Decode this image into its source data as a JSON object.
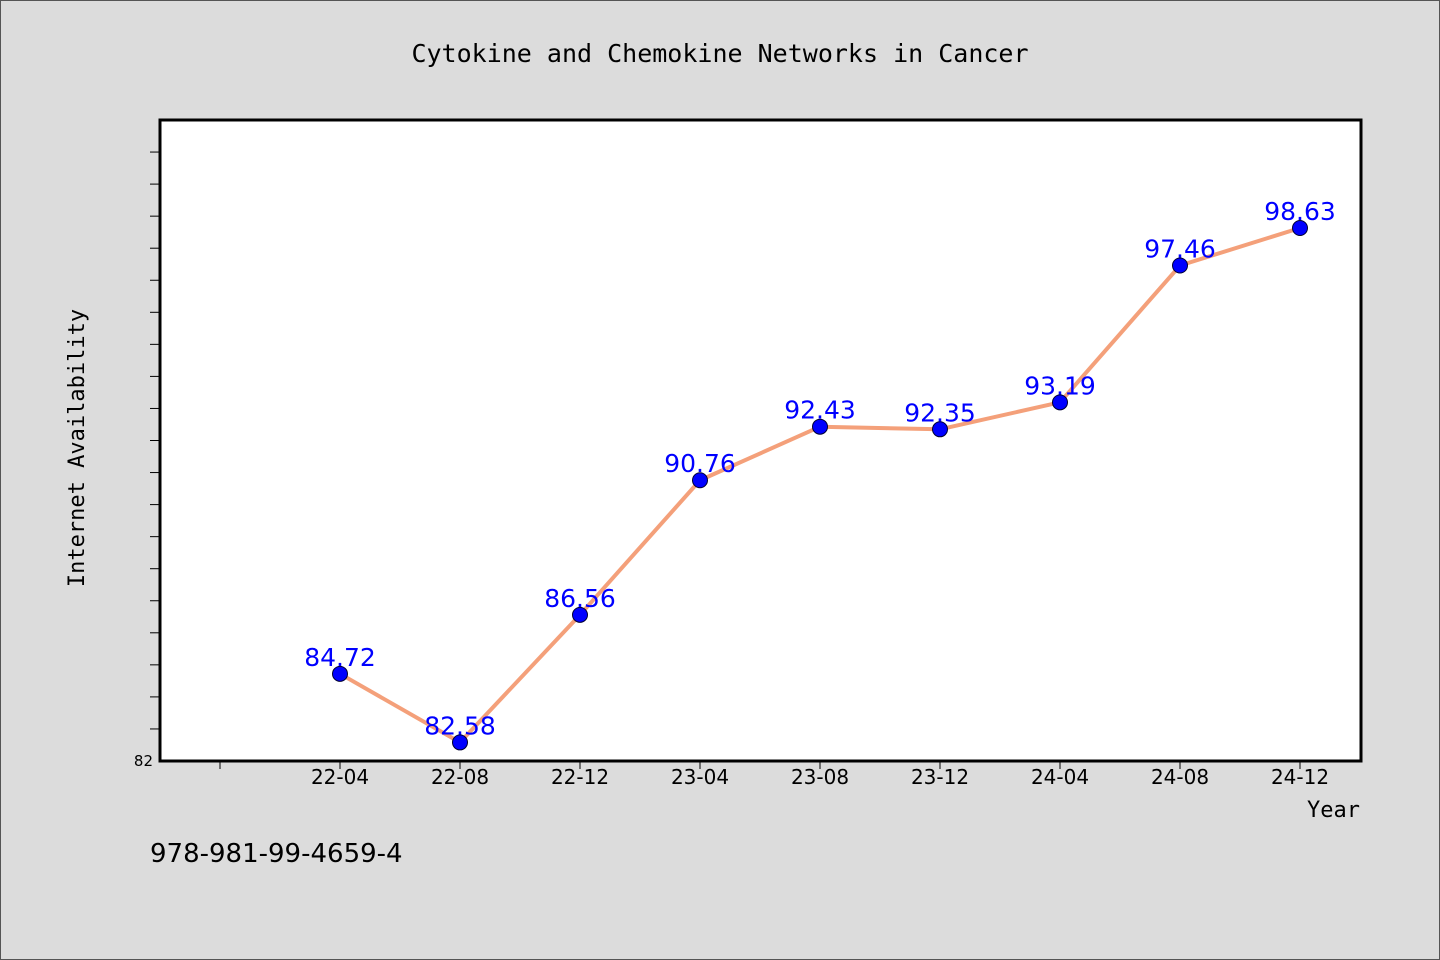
{
  "chart_data": {
    "type": "line",
    "title": "Cytokine and Chemokine Networks in Cancer",
    "xlabel": "Year",
    "ylabel": "Internet Availability",
    "categories": [
      "22-04",
      "22-08",
      "22-12",
      "23-04",
      "23-08",
      "23-12",
      "24-04",
      "24-08",
      "24-12"
    ],
    "series": [
      {
        "values": [
          84.72,
          82.58,
          86.56,
          90.76,
          92.43,
          92.35,
          93.19,
          97.46,
          98.63
        ],
        "labels": [
          "84.72",
          "82.58",
          "86.56",
          "90.76",
          "92.43",
          "92.35",
          "93.19",
          "97.46",
          "98.63"
        ],
        "line_color": "#f4a07a",
        "marker_color": "#0000ff"
      }
    ],
    "ylim": [
      82,
      102
    ],
    "ytick_labels": [
      {
        "value": 82,
        "label": "82"
      }
    ],
    "grid": false,
    "plot_background": "#ffffff"
  },
  "footer_text": "978-981-99-4659-4"
}
